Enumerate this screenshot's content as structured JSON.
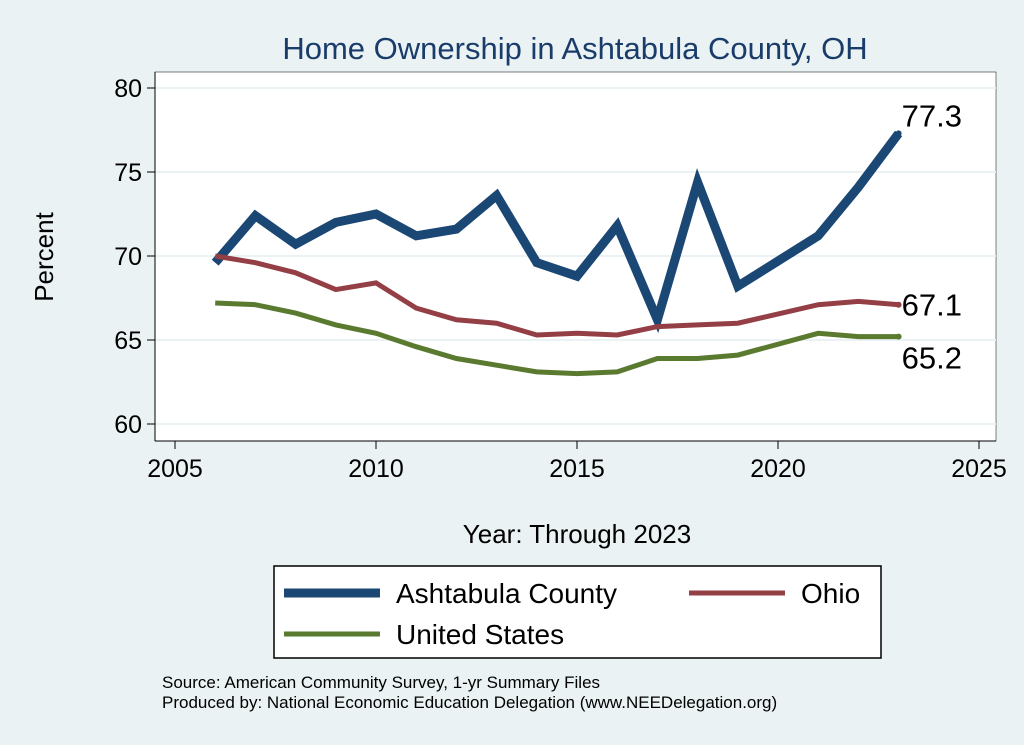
{
  "chart_data": {
    "type": "line",
    "title": "Home Ownership in Ashtabula County, OH",
    "xlabel": "Year: Through 2023",
    "ylabel": "Percent",
    "xlim": [
      2005,
      2025
    ],
    "ylim": [
      60,
      80
    ],
    "x_ticks": [
      2005,
      2010,
      2015,
      2020,
      2025
    ],
    "y_ticks": [
      60,
      65,
      70,
      75,
      80
    ],
    "grid": true,
    "legend_position": "bottom",
    "series": [
      {
        "name": "Ashtabula County",
        "color": "#1a4774",
        "x": [
          2006,
          2007,
          2008,
          2009,
          2010,
          2011,
          2012,
          2013,
          2014,
          2015,
          2016,
          2017,
          2018,
          2019,
          2021,
          2022,
          2023
        ],
        "values": [
          69.6,
          72.4,
          70.7,
          72.0,
          72.5,
          71.2,
          71.6,
          73.6,
          69.6,
          68.8,
          71.8,
          66.2,
          74.4,
          68.2,
          71.2,
          74.1,
          77.3
        ],
        "end_label": "77.3"
      },
      {
        "name": "Ohio",
        "color": "#943f46",
        "x": [
          2006,
          2007,
          2008,
          2009,
          2010,
          2011,
          2012,
          2013,
          2014,
          2015,
          2016,
          2017,
          2018,
          2019,
          2021,
          2022,
          2023
        ],
        "values": [
          70.0,
          69.6,
          69.0,
          68.0,
          68.4,
          66.9,
          66.2,
          66.0,
          65.3,
          65.4,
          65.3,
          65.8,
          65.9,
          66.0,
          67.1,
          67.3,
          67.1
        ],
        "end_label": "67.1"
      },
      {
        "name": "United States",
        "color": "#5a7a30",
        "x": [
          2006,
          2007,
          2008,
          2009,
          2010,
          2011,
          2012,
          2013,
          2014,
          2015,
          2016,
          2017,
          2018,
          2019,
          2021,
          2022,
          2023
        ],
        "values": [
          67.2,
          67.1,
          66.6,
          65.9,
          65.4,
          64.6,
          63.9,
          63.5,
          63.1,
          63.0,
          63.1,
          63.9,
          63.9,
          64.1,
          65.4,
          65.2,
          65.2
        ],
        "end_label": "65.2"
      }
    ]
  },
  "footer": {
    "source": "Source: American Community Survey, 1-yr Summary Files",
    "produced_by": "Produced by: National Economic Education Delegation (www.NEEDelegation.org)"
  }
}
